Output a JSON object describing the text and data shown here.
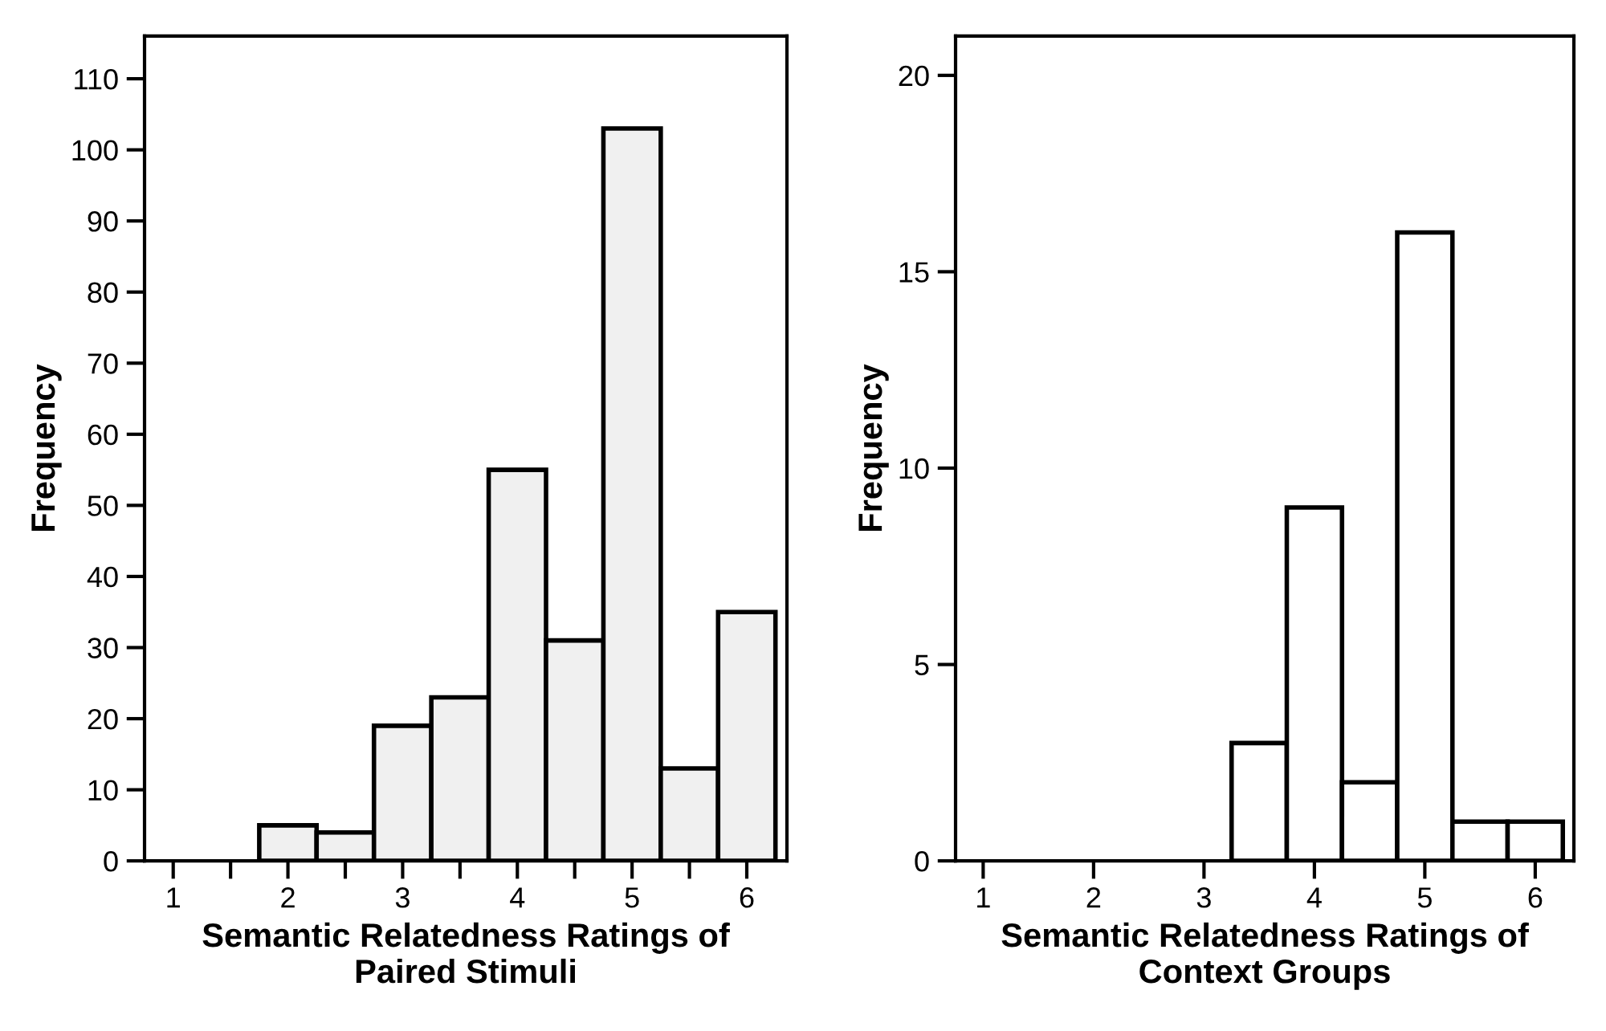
{
  "chart_data": [
    {
      "type": "histogram",
      "xlabel": "Semantic Relatedness Ratings of Paired Stimuli",
      "ylabel": "Frequency",
      "bins": [
        0.75,
        1.25,
        1.75,
        2.25,
        2.75,
        3.25,
        3.75,
        4.25,
        4.75,
        5.25,
        5.75,
        6.25
      ],
      "values": [
        0,
        0,
        5,
        4,
        19,
        23,
        55,
        31,
        103,
        13,
        35
      ],
      "color": "#f0f0f0",
      "xlim": [
        0.75,
        6.35
      ],
      "ylim": [
        0,
        116
      ],
      "xticks": [
        1,
        {
          "value": 1.5,
          "label": null
        },
        2,
        {
          "value": 2.5,
          "label": null
        },
        3,
        {
          "value": 3.5,
          "label": null
        },
        4,
        {
          "value": 4.5,
          "label": null
        },
        5,
        {
          "value": 5.5,
          "label": null
        },
        6
      ],
      "yticks": [
        0,
        10,
        20,
        30,
        40,
        50,
        60,
        70,
        80,
        90,
        100,
        110
      ],
      "grid": false
    },
    {
      "type": "histogram",
      "xlabel": "Semantic Relatedness Ratings of Context Groups",
      "ylabel": "Frequency",
      "bins": [
        0.75,
        1.25,
        1.75,
        2.25,
        2.75,
        3.25,
        3.75,
        4.25,
        4.75,
        5.25,
        5.75,
        6.25
      ],
      "values": [
        0,
        0,
        0,
        0,
        0,
        3,
        9,
        2,
        16,
        1,
        1
      ],
      "color": "#ffffff",
      "xlim": [
        0.75,
        6.35
      ],
      "ylim": [
        0,
        21
      ],
      "xticks": [
        1,
        2,
        3,
        4,
        5,
        6
      ],
      "yticks": [
        0,
        5,
        10,
        15,
        20
      ],
      "grid": false
    }
  ]
}
